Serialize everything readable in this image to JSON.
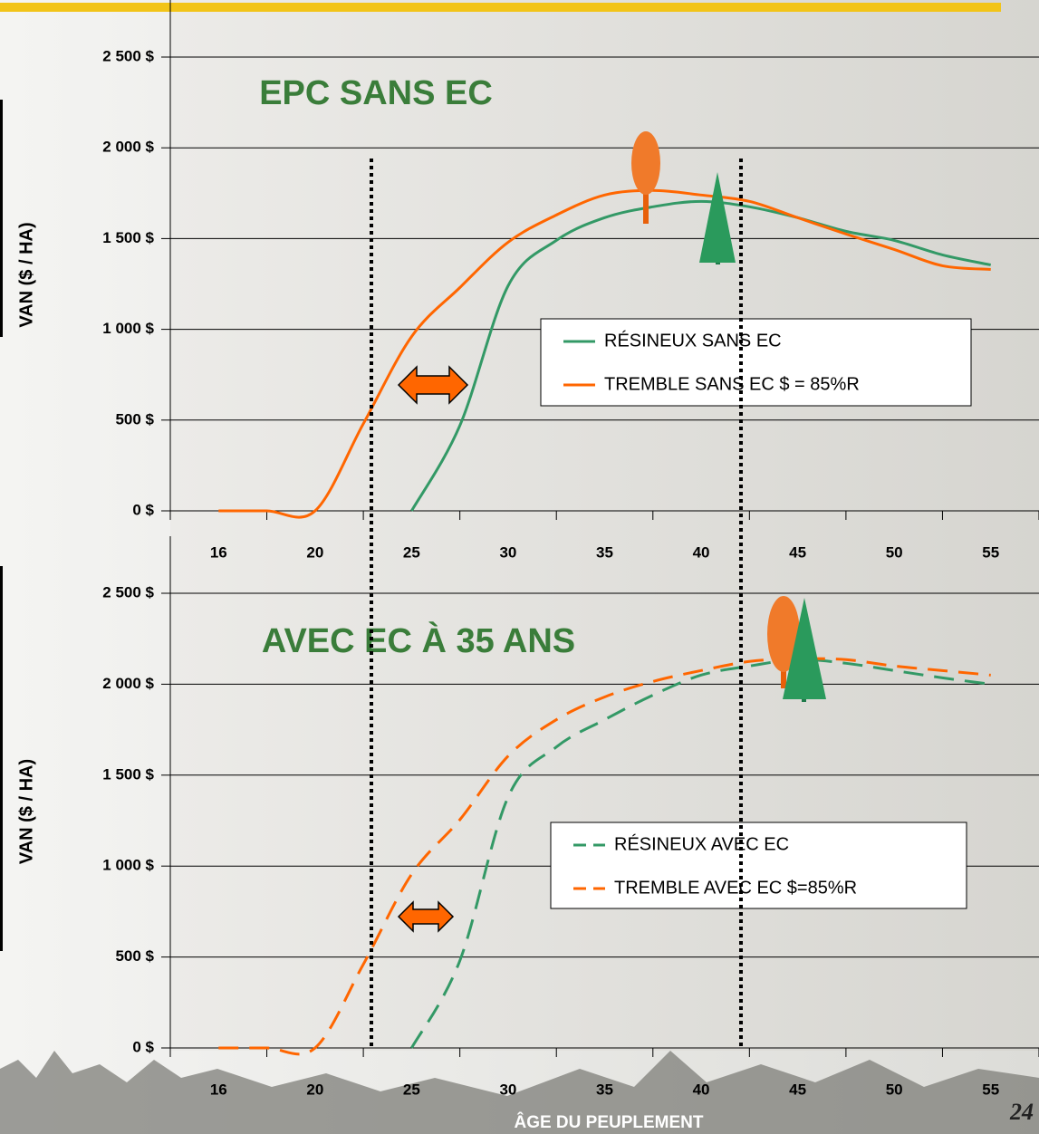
{
  "chart_data": [
    {
      "type": "line",
      "title": "EPC SANS EC",
      "ylabel": "VAN ($ / HA)",
      "categories": [
        "16",
        null,
        "20",
        null,
        "25",
        null,
        "30",
        null,
        "35",
        null,
        "40",
        null,
        "45",
        null,
        "50",
        null,
        "55"
      ],
      "series": [
        {
          "name": "RÉSINEUX SANS EC",
          "color": "#339966",
          "line_style": "solid",
          "values": [
            null,
            null,
            null,
            null,
            0,
            470,
            1240,
            1490,
            1615,
            1675,
            1705,
            1675,
            1615,
            1540,
            1490,
            1410,
            1355
          ]
        },
        {
          "name": "TREMBLE SANS EC $ = 85%R",
          "color": "#ff6600",
          "line_style": "solid",
          "values": [
            0,
            0,
            0,
            480,
            960,
            1230,
            1480,
            1630,
            1740,
            1765,
            1740,
            1705,
            1615,
            1525,
            1440,
            1350,
            1330
          ]
        }
      ],
      "ylim": [
        0,
        2500
      ],
      "yticks": [
        {
          "value": 0,
          "label": "0 $"
        },
        {
          "value": 500,
          "label": "500 $"
        },
        {
          "value": 1000,
          "label": "1 000 $"
        },
        {
          "value": 1500,
          "label": "1 500 $"
        },
        {
          "value": 2000,
          "label": "2 000 $"
        },
        {
          "value": 2500,
          "label": "2 500 $"
        }
      ],
      "grid": true
    },
    {
      "type": "line",
      "title": "AVEC EC À 35 ANS",
      "ylabel": "VAN ($ / HA)",
      "xlabel": "ÂGE DU PEUPLEMENT",
      "categories": [
        "16",
        null,
        "20",
        null,
        "25",
        null,
        "30",
        null,
        "35",
        null,
        "40",
        null,
        "45",
        null,
        "50",
        null,
        "55"
      ],
      "series": [
        {
          "name": "RÉSINEUX AVEC EC",
          "color": "#339966",
          "line_style": "dashed",
          "values": [
            null,
            null,
            null,
            null,
            0,
            480,
            1380,
            1655,
            1805,
            1940,
            2050,
            2100,
            2135,
            2115,
            2075,
            2035,
            2000
          ]
        },
        {
          "name": "TREMBLE AVEC EC $=85%R",
          "color": "#ff6600",
          "line_style": "dashed",
          "values": [
            0,
            0,
            0,
            460,
            955,
            1255,
            1605,
            1805,
            1930,
            2015,
            2075,
            2125,
            2140,
            2135,
            2100,
            2075,
            2050
          ]
        }
      ],
      "ylim": [
        0,
        2500
      ],
      "yticks": [
        {
          "value": 0,
          "label": "0 $"
        },
        {
          "value": 500,
          "label": "500 $"
        },
        {
          "value": 1000,
          "label": "1 000 $"
        },
        {
          "value": 1500,
          "label": "1 500 $"
        },
        {
          "value": 2000,
          "label": "2 000 $"
        },
        {
          "value": 2500,
          "label": "2 500 $"
        }
      ],
      "grid": true
    }
  ],
  "page_number": "24"
}
